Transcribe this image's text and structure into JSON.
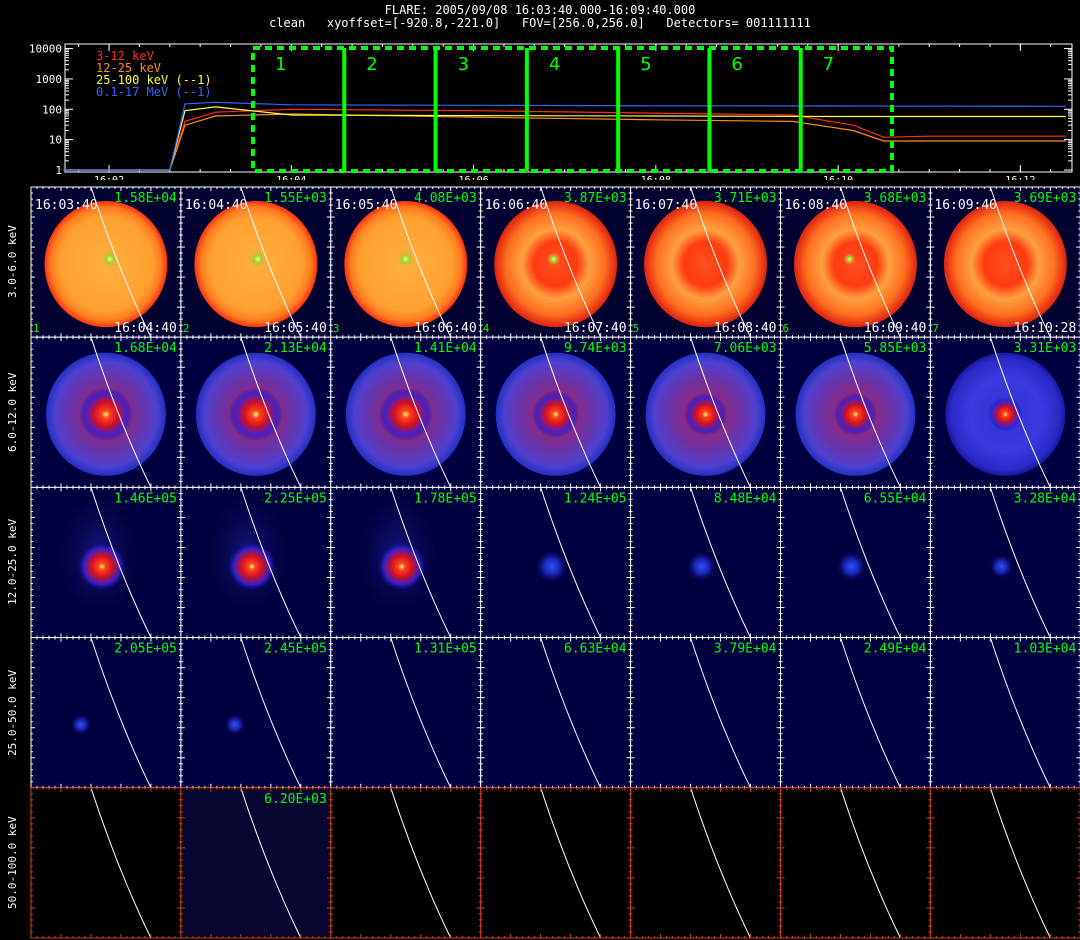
{
  "header": {
    "line1": "FLARE: 2005/09/08 16:03:40.000-16:09:40.000",
    "line2": "clean   xyoffset=[-920.8,-221.0]   FOV=[256.0,256.0]   Detectors= 001111111"
  },
  "colors": {
    "red": "#ff2a1a",
    "orange": "#ff8c1a",
    "yellow": "#ffff40",
    "blue": "#3366ff",
    "green": "#00ff00",
    "white": "#ffffff",
    "frame_bottom": "#d04020"
  },
  "chart_data": [
    {
      "type": "line",
      "title": "",
      "xlabel": "",
      "ylabel": "",
      "x_tick_labels": [
        "16:02",
        "16:04",
        "16:06",
        "16:08",
        "16:10",
        "16:12"
      ],
      "y_tick_labels": [
        "1",
        "10",
        "100",
        "1000",
        "10000"
      ],
      "ylim": [
        1,
        10000
      ],
      "yscale": "log",
      "legend": [
        "3-12 keV",
        "12-25 keV",
        "25-100 keV (--1)",
        "0.1-17 MeV (--1)"
      ],
      "legend_placement": "top-left",
      "series": [
        {
          "name": "3-12 keV",
          "color": "#ff2a1a",
          "x": [
            "16:01:30",
            "16:02:40",
            "16:02:50",
            "16:03:10",
            "16:04:00",
            "16:06:00",
            "16:08:00",
            "16:09:30",
            "16:10:10",
            "16:10:30",
            "16:11:00",
            "16:12:30"
          ],
          "y": [
            1,
            1,
            40,
            80,
            100,
            90,
            75,
            65,
            30,
            12,
            13,
            13
          ]
        },
        {
          "name": "12-25 keV",
          "color": "#ff8c1a",
          "x": [
            "16:01:30",
            "16:02:40",
            "16:02:50",
            "16:03:10",
            "16:04:00",
            "16:06:00",
            "16:08:00",
            "16:09:30",
            "16:10:10",
            "16:10:30",
            "16:11:00",
            "16:12:30"
          ],
          "y": [
            1,
            1,
            30,
            60,
            70,
            55,
            45,
            40,
            20,
            9,
            9,
            9
          ]
        },
        {
          "name": "25-100 keV (--1)",
          "color": "#ffff40",
          "x": [
            "16:01:30",
            "16:02:40",
            "16:02:50",
            "16:03:10",
            "16:04:00",
            "16:06:00",
            "16:08:00",
            "16:10:00",
            "16:12:30"
          ],
          "y": [
            1,
            1,
            90,
            120,
            65,
            62,
            60,
            58,
            58
          ]
        },
        {
          "name": "0.1-17 MeV (--1)",
          "color": "#3366ff",
          "x": [
            "16:01:30",
            "16:02:40",
            "16:02:50",
            "16:03:10",
            "16:04:00",
            "16:06:00",
            "16:08:00",
            "16:10:00",
            "16:12:30"
          ],
          "y": [
            1,
            1,
            150,
            170,
            140,
            135,
            130,
            128,
            125
          ]
        }
      ],
      "intervals": [
        "1",
        "2",
        "3",
        "4",
        "5",
        "6",
        "7"
      ]
    },
    {
      "type": "heatmap",
      "row_labels": [
        "3.0-6.0 keV",
        "6.0-12.0 keV",
        "12.0-25.0 keV",
        "25.0-50.0 keV",
        "50.0-100.0 keV"
      ],
      "start_times": [
        "16:03:40",
        "16:04:40",
        "16:05:40",
        "16:06:40",
        "16:07:40",
        "16:08:40",
        "16:09:40"
      ],
      "end_times": [
        "16:04:40",
        "16:05:40",
        "16:06:40",
        "16:07:40",
        "16:08:40",
        "16:09:40",
        "16:10:28"
      ],
      "interval_numbers": [
        "1",
        "2",
        "3",
        "4",
        "5",
        "6",
        "7"
      ],
      "peak_values": [
        [
          "1.58E+04",
          "1.55E+03",
          "4.08E+03",
          "3.87E+03",
          "3.71E+03",
          "3.68E+03",
          "3.69E+03"
        ],
        [
          "1.68E+04",
          "2.13E+04",
          "1.41E+04",
          "9.74E+03",
          "7.06E+03",
          "5.85E+03",
          "3.31E+03"
        ],
        [
          "1.46E+05",
          "2.25E+05",
          "1.78E+05",
          "1.24E+05",
          "8.48E+04",
          "6.55E+04",
          "3.28E+04"
        ],
        [
          "2.05E+05",
          "2.45E+05",
          "1.31E+05",
          "6.63E+04",
          "3.79E+04",
          "2.49E+04",
          "1.03E+04"
        ],
        [
          "",
          "6.20E+03",
          "",
          "",
          "",
          "",
          ""
        ]
      ],
      "ring_rows": [
        0,
        1
      ],
      "row_style": [
        "ring-orange",
        "ring-blue",
        "core-blue",
        "core-blue",
        "faint"
      ],
      "core_level": [
        [
          0.7,
          0.7,
          0.7,
          0.4,
          0.0,
          0.3,
          0.0
        ],
        [
          0.95,
          0.95,
          0.95,
          0.8,
          0.7,
          0.7,
          0.5
        ],
        [
          1.0,
          1.0,
          0.9,
          0.7,
          0.6,
          0.6,
          0.4
        ],
        [
          0.5,
          0.4,
          0.0,
          0.0,
          0.0,
          0.0,
          0.0
        ],
        [
          0.0,
          0.15,
          0.0,
          0.0,
          0.0,
          0.0,
          0.0
        ]
      ]
    }
  ]
}
